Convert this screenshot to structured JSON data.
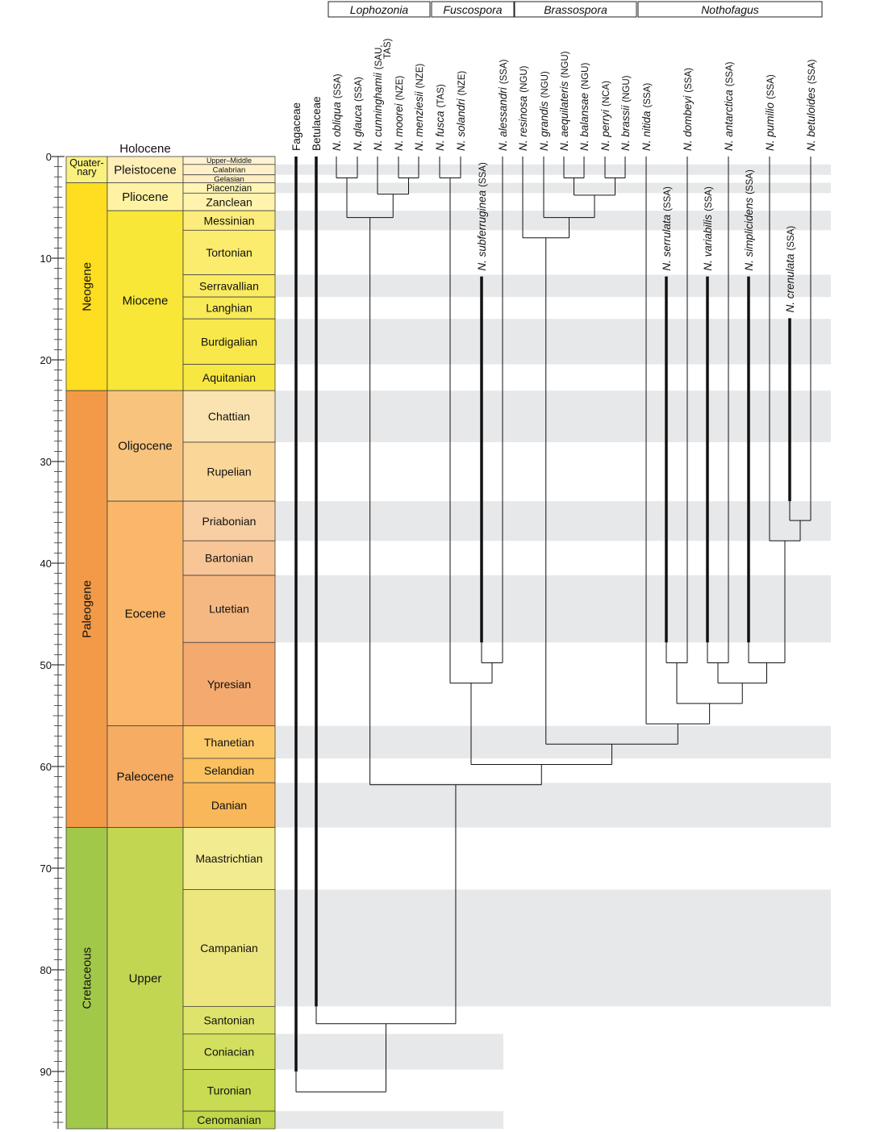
{
  "chart_data": {
    "type": "phylogeny-timescale",
    "time_axis": {
      "min_ma": 0,
      "max_ma": 96,
      "ticks": [
        0,
        10,
        20,
        30,
        40,
        50,
        60,
        70,
        80,
        90
      ]
    },
    "holocene_label": "Holocene",
    "periods": [
      {
        "name": "Quater-\nnary",
        "start": 0,
        "end": 2.58,
        "color": "#f9f07f"
      },
      {
        "name": "Neogene",
        "start": 2.58,
        "end": 23.03,
        "color": "#ffdd20"
      },
      {
        "name": "Paleogene",
        "start": 23.03,
        "end": 66.0,
        "color": "#f39a48"
      },
      {
        "name": "Cretaceous",
        "start": 66.0,
        "end": 96,
        "color": "#a2c84a"
      }
    ],
    "epochs": [
      {
        "name": "Pleistocene",
        "start": 0,
        "end": 2.58,
        "color": "#fff0b8"
      },
      {
        "name": "Pliocene",
        "start": 2.58,
        "end": 5.33,
        "color": "#fff3a3"
      },
      {
        "name": "Miocene",
        "start": 5.33,
        "end": 23.03,
        "color": "#f9e737"
      },
      {
        "name": "Oligocene",
        "start": 23.03,
        "end": 33.9,
        "color": "#f8c47d"
      },
      {
        "name": "Eocene",
        "start": 33.9,
        "end": 56.0,
        "color": "#fab76a"
      },
      {
        "name": "Paleocene",
        "start": 56.0,
        "end": 66.0,
        "color": "#f6ac63"
      },
      {
        "name": "Upper",
        "start": 66.0,
        "end": 96,
        "color": "#c3d651"
      }
    ],
    "stages": [
      {
        "name": "Upper–Middle",
        "start": 0,
        "end": 0.78,
        "color": "#fff3d3",
        "size": 9
      },
      {
        "name": "Calabrian",
        "start": 0.78,
        "end": 1.8,
        "color": "#fff0c7",
        "size": 9.5
      },
      {
        "name": "Gelasian",
        "start": 1.8,
        "end": 2.58,
        "color": "#ffeec2",
        "size": 9.5
      },
      {
        "name": "Piacenzian",
        "start": 2.58,
        "end": 3.6,
        "color": "#fff5b7",
        "size": 11.5
      },
      {
        "name": "Zanclean",
        "start": 3.6,
        "end": 5.33,
        "color": "#fff3ad",
        "size": 14
      },
      {
        "name": "Messinian",
        "start": 5.33,
        "end": 7.25,
        "color": "#fbec7c",
        "size": 14
      },
      {
        "name": "Tortonian",
        "start": 7.25,
        "end": 11.63,
        "color": "#fbec6e",
        "size": 14
      },
      {
        "name": "Serravallian",
        "start": 11.63,
        "end": 13.82,
        "color": "#faeb61",
        "size": 14
      },
      {
        "name": "Langhian",
        "start": 13.82,
        "end": 15.97,
        "color": "#f9ea57",
        "size": 14
      },
      {
        "name": "Burdigalian",
        "start": 15.97,
        "end": 20.44,
        "color": "#f8e84c",
        "size": 14
      },
      {
        "name": "Aquitanian",
        "start": 20.44,
        "end": 23.03,
        "color": "#f7e742",
        "size": 14
      },
      {
        "name": "Chattian",
        "start": 23.03,
        "end": 28.1,
        "color": "#fbe3b1",
        "size": 14
      },
      {
        "name": "Rupelian",
        "start": 28.1,
        "end": 33.9,
        "color": "#fbd699",
        "size": 14
      },
      {
        "name": "Priabonian",
        "start": 33.9,
        "end": 37.8,
        "color": "#f8cfa3",
        "size": 14
      },
      {
        "name": "Bartonian",
        "start": 37.8,
        "end": 41.2,
        "color": "#f7c596",
        "size": 14
      },
      {
        "name": "Lutetian",
        "start": 41.2,
        "end": 47.8,
        "color": "#f6b883",
        "size": 14
      },
      {
        "name": "Ypresian",
        "start": 47.8,
        "end": 56.0,
        "color": "#f4a96f",
        "size": 14
      },
      {
        "name": "Thanetian",
        "start": 56.0,
        "end": 59.2,
        "color": "#fcca6b",
        "size": 14
      },
      {
        "name": "Selandian",
        "start": 59.2,
        "end": 61.6,
        "color": "#fbc15e",
        "size": 14
      },
      {
        "name": "Danian",
        "start": 61.6,
        "end": 66.0,
        "color": "#f8b759",
        "size": 14
      },
      {
        "name": "Maastrichtian",
        "start": 66.0,
        "end": 72.1,
        "color": "#f2eb8f",
        "size": 14
      },
      {
        "name": "Campanian",
        "start": 72.1,
        "end": 83.6,
        "color": "#ede67f",
        "size": 14
      },
      {
        "name": "Santonian",
        "start": 83.6,
        "end": 86.3,
        "color": "#dee36c",
        "size": 14
      },
      {
        "name": "Coniacian",
        "start": 86.3,
        "end": 89.8,
        "color": "#d3df5e",
        "size": 14
      },
      {
        "name": "Turonian",
        "start": 89.8,
        "end": 93.9,
        "color": "#c8db52",
        "size": 14
      },
      {
        "name": "Cenomanian",
        "start": 93.9,
        "end": 96,
        "color": "#bfd74a",
        "size": 14
      }
    ],
    "shaded_bands": [
      {
        "start": 0.78,
        "end": 1.8,
        "extent": "full"
      },
      {
        "start": 2.58,
        "end": 3.6,
        "extent": "full"
      },
      {
        "start": 5.33,
        "end": 7.25,
        "extent": "full"
      },
      {
        "start": 11.63,
        "end": 13.82,
        "extent": "full"
      },
      {
        "start": 15.97,
        "end": 20.44,
        "extent": "full"
      },
      {
        "start": 23.03,
        "end": 28.1,
        "extent": "full"
      },
      {
        "start": 33.9,
        "end": 37.8,
        "extent": "full"
      },
      {
        "start": 41.2,
        "end": 47.8,
        "extent": "full"
      },
      {
        "start": 56.0,
        "end": 59.2,
        "extent": "full"
      },
      {
        "start": 61.6,
        "end": 66.0,
        "extent": "full"
      },
      {
        "start": 72.1,
        "end": 83.6,
        "extent": "full"
      },
      {
        "start": 86.3,
        "end": 89.8,
        "extent": "partial"
      },
      {
        "start": 93.9,
        "end": 96,
        "extent": "partial"
      }
    ],
    "subgenera": [
      {
        "name": "Lophozonia",
        "from": "obliqua",
        "to": "menziesii"
      },
      {
        "name": "Fuscospora",
        "from": "fusca",
        "to": "alessandri"
      },
      {
        "name": "Brassospora",
        "from": "resinosa",
        "to": "brassii"
      },
      {
        "name": "Nothofagus",
        "from": "nitida",
        "to": "betuloides"
      }
    ],
    "top_taxa": [
      {
        "id": "fagaceae",
        "label": "Fagaceae",
        "italic": false
      },
      {
        "id": "betulaceae",
        "label": "Betulaceae",
        "italic": false
      },
      {
        "id": "obliqua",
        "label": "N. obliqua",
        "region": "(SSA)",
        "italic": true
      },
      {
        "id": "glauca",
        "label": "N. glauca",
        "region": "(SSA)",
        "italic": true
      },
      {
        "id": "cunninghamii",
        "label": "N. cunninghamii",
        "region": "(SAU,",
        "region2": "TAS)",
        "italic": true
      },
      {
        "id": "moorei",
        "label": "N. moorei",
        "region": "(NZE)",
        "italic": true
      },
      {
        "id": "menziesii",
        "label": "N. menziesii",
        "region": "(NZE)",
        "italic": true
      },
      {
        "id": "fusca",
        "label": "N. fusca",
        "region": "(TAS)",
        "italic": true
      },
      {
        "id": "solandri",
        "label": "N. solandri",
        "region": "(NZE)",
        "italic": true
      },
      {
        "id": "alessandri",
        "label": "N. alessandri",
        "region": "(SSA)",
        "italic": true
      },
      {
        "id": "resinosa",
        "label": "N. resinosa",
        "region": "(NGU)",
        "italic": true
      },
      {
        "id": "grandis",
        "label": "N. grandis",
        "region": "(NGU)",
        "italic": true
      },
      {
        "id": "aequilateris",
        "label": "N. aequilateris",
        "region": "(NGU)",
        "italic": true
      },
      {
        "id": "balansae",
        "label": "N. balansae",
        "region": "(NGU)",
        "italic": true
      },
      {
        "id": "perryi",
        "label": "N. perryi",
        "region": "(NCA)",
        "italic": true
      },
      {
        "id": "brassii",
        "label": "N. brassii",
        "region": "(NGU)",
        "italic": true
      },
      {
        "id": "nitida",
        "label": "N. nitida",
        "region": "(SSA)",
        "italic": true
      },
      {
        "id": "dombeyi",
        "label": "N. dombeyi",
        "region": "(SSA)",
        "italic": true
      },
      {
        "id": "antarctica",
        "label": "N. antarctica",
        "region": "(SSA)",
        "italic": true
      },
      {
        "id": "pumilio",
        "label": "N. pumilio",
        "region": "(SSA)",
        "italic": true
      },
      {
        "id": "betuloides",
        "label": "N. betuloides",
        "region": "(SSA)",
        "italic": true
      }
    ],
    "inline_taxa": [
      {
        "id": "subferruginea",
        "label": "N. subferruginea",
        "region": "(SSA)",
        "bold_from": 11.8,
        "bold_to": 47.8
      },
      {
        "id": "serrulata",
        "label": "N. serrulata",
        "region": "(SSA)",
        "bold_from": 11.8,
        "bold_to": 47.8
      },
      {
        "id": "variabilis",
        "label": "N. variabilis",
        "region": "(SSA)",
        "bold_from": 11.8,
        "bold_to": 47.8
      },
      {
        "id": "simplicidens",
        "label": "N. simplicidens",
        "region": "(SSA)",
        "bold_from": 11.8,
        "bold_to": 47.8
      },
      {
        "id": "crenulata",
        "label": "N. crenulata",
        "region": "(SSA)",
        "bold_from": 15.9,
        "bold_to": 33.9
      }
    ],
    "outgroup_stems": [
      {
        "id": "fagaceae",
        "bold_to": 90
      },
      {
        "id": "betulaceae",
        "bold_to": 83.6
      }
    ],
    "nodes": [
      {
        "children": [
          "obliqua",
          "glauca"
        ],
        "age": 2.1
      },
      {
        "children": [
          "moorei",
          "menziesii"
        ],
        "age": 2.1
      },
      {
        "children": [
          "cunninghamii",
          "moorei+menziesii"
        ],
        "age": 3.7
      },
      {
        "children": [
          "obliqua+glauca",
          "cunninghamii+"
        ],
        "age": 6.0
      },
      {
        "children": [
          "fusca",
          "solandri"
        ],
        "age": 2.1
      },
      {
        "children": [
          "subferruginea",
          "alessandri"
        ],
        "age": 49.8
      },
      {
        "children": [
          "fusca+solandri",
          "subferruginea+alessandri"
        ],
        "age": 51.8
      },
      {
        "children": [
          "aequilateris",
          "balansae"
        ],
        "age": 2.1
      },
      {
        "children": [
          "perryi",
          "brassii"
        ],
        "age": 2.1
      },
      {
        "children": [
          "aequilateris+balansae",
          "perryi+brassii"
        ],
        "age": 3.8
      },
      {
        "children": [
          "grandis",
          "aequilateris+"
        ],
        "age": 6.0
      },
      {
        "children": [
          "resinosa",
          "grandis+"
        ],
        "age": 8.0
      },
      {
        "children": [
          "serrulata",
          "dombeyi"
        ],
        "age": 49.8
      },
      {
        "children": [
          "variabilis",
          "antarctica"
        ],
        "age": 49.8
      },
      {
        "children": [
          "simplicidens",
          "pumilio-clade"
        ],
        "age": 49.8
      },
      {
        "children": [
          "crenulata",
          "betuloides"
        ],
        "age": 35.8
      },
      {
        "children": [
          "pumilio",
          "crenulata+betuloides"
        ],
        "age": 37.8
      },
      {
        "children": [
          "variabilis+antarctica",
          "simplicidens+"
        ],
        "age": 51.8
      },
      {
        "children": [
          "serrulata+dombeyi",
          "variabilis+"
        ],
        "age": 53.8
      },
      {
        "children": [
          "nitida",
          "serrulata+"
        ],
        "age": 55.8
      },
      {
        "children": [
          "Brassospora",
          "Nothofagus"
        ],
        "age": 57.8
      },
      {
        "children": [
          "Fuscospora",
          "Brassospora+Nothofagus"
        ],
        "age": 59.8
      },
      {
        "children": [
          "Lophozonia",
          "rest"
        ],
        "age": 61.8
      },
      {
        "children": [
          "Nothofagaceae",
          "Betulaceae"
        ],
        "age": 85.3
      },
      {
        "children": [
          "Fagaceae",
          "Betulaceae+Nothofagaceae"
        ],
        "age": 92.0
      }
    ]
  }
}
